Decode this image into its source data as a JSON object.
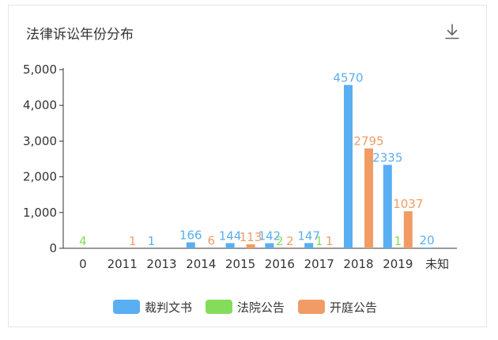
{
  "header": {
    "title": "法律诉讼年份分布",
    "download_icon": "download-icon"
  },
  "chart_data": {
    "type": "bar",
    "categories": [
      "0",
      "2011",
      "2013",
      "2014",
      "2015",
      "2016",
      "2017",
      "2018",
      "2019",
      "未知"
    ],
    "series": [
      {
        "name": "裁判文书",
        "color": "#5aaef2",
        "values": [
          null,
          null,
          1,
          166,
          144,
          142,
          147,
          4570,
          2335,
          20
        ]
      },
      {
        "name": "法院公告",
        "color": "#84dd5a",
        "values": [
          4,
          null,
          null,
          null,
          null,
          2,
          1,
          null,
          1,
          null
        ]
      },
      {
        "name": "开庭公告",
        "color": "#f09c64",
        "values": [
          null,
          1,
          null,
          6,
          113,
          2,
          1,
          2795,
          1037,
          null
        ]
      }
    ],
    "ylim": [
      0,
      5000
    ],
    "yticks": [
      0,
      1000,
      2000,
      3000,
      4000,
      5000
    ],
    "ytick_labels": [
      "0",
      "1,000",
      "2,000",
      "3,000",
      "4,000",
      "5,000"
    ],
    "legend_position": "bottom"
  }
}
